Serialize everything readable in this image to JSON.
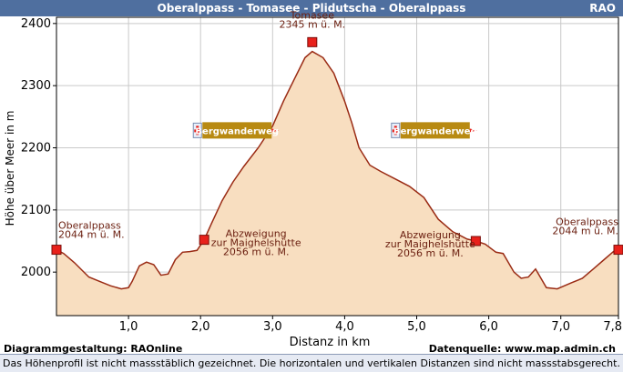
{
  "header": {
    "title": "Oberalppass -  Tomasee - Plidutscha - Oberalppass",
    "brand": "RAO"
  },
  "footer": {
    "design_credit": "Diagrammgestaltung: RAOnline",
    "source_credit": "Datenquelle: www.map.admin.ch",
    "note": "Das Höhenprofil ist nicht massstäblich gezeichnet. Die horizontalen und vertikalen Distanzen sind nicht massstabsgerecht."
  },
  "colors": {
    "header_bar": "#4f6f9f",
    "fill": "#f8dec0",
    "line": "#9a2b14",
    "marker": "#e8211b",
    "badge": "#b88a12"
  },
  "chart_data": {
    "type": "area",
    "xlabel": "Distanz in km",
    "ylabel": "Höhe über Meer in m",
    "xlim": [
      0,
      7.8
    ],
    "ylim": [
      1930,
      2410
    ],
    "y_ticks": [
      2000,
      2100,
      2200,
      2300,
      2400
    ],
    "x_ticks": [
      {
        "value": 1.0,
        "label": "1,0"
      },
      {
        "value": 2.0,
        "label": "2,0"
      },
      {
        "value": 3.0,
        "label": "3,0"
      },
      {
        "value": 4.0,
        "label": "4,0"
      },
      {
        "value": 5.0,
        "label": "5,0"
      },
      {
        "value": 6.0,
        "label": "6,0"
      },
      {
        "value": 7.0,
        "label": "7,0"
      },
      {
        "value": 7.8,
        "label": "7,8"
      }
    ],
    "grid": true,
    "x": [
      0,
      0.1,
      0.25,
      0.45,
      0.6,
      0.75,
      0.9,
      1.0,
      1.05,
      1.15,
      1.25,
      1.35,
      1.45,
      1.55,
      1.65,
      1.75,
      1.85,
      1.95,
      2.05,
      2.15,
      2.3,
      2.45,
      2.6,
      2.8,
      3.0,
      3.15,
      3.3,
      3.45,
      3.55,
      3.7,
      3.85,
      4.0,
      4.1,
      4.2,
      4.35,
      4.5,
      4.7,
      4.9,
      5.1,
      5.3,
      5.5,
      5.7,
      5.82,
      5.95,
      6.1,
      6.2,
      6.35,
      6.45,
      6.55,
      6.65,
      6.8,
      6.95,
      7.05,
      7.15,
      7.3,
      7.45,
      7.6,
      7.75,
      7.8
    ],
    "y": [
      2036,
      2030,
      2015,
      1992,
      1985,
      1978,
      1973,
      1975,
      1985,
      2010,
      2016,
      2012,
      1995,
      1997,
      2020,
      2032,
      2033,
      2035,
      2052,
      2078,
      2115,
      2145,
      2170,
      2200,
      2235,
      2275,
      2310,
      2345,
      2355,
      2345,
      2320,
      2275,
      2240,
      2200,
      2172,
      2162,
      2150,
      2138,
      2120,
      2085,
      2065,
      2053,
      2050,
      2045,
      2032,
      2030,
      2000,
      1990,
      1992,
      2005,
      1975,
      1973,
      1978,
      1983,
      1990,
      2005,
      2020,
      2035,
      2044
    ],
    "markers": [
      {
        "x": 0.0,
        "y": 2036,
        "name": "Oberalppass",
        "elevation": "2044 m ü. M."
      },
      {
        "x": 2.05,
        "y": 2052,
        "name": "Abzweigung\nzur Maighelshütte",
        "elevation": "2056 m ü. M."
      },
      {
        "x": 3.55,
        "y": 2370,
        "name": "Tomasee",
        "elevation": "2345 m ü. M."
      },
      {
        "x": 5.82,
        "y": 2050,
        "name": "Abzweigung\nzur Maighelshütte",
        "elevation": "2056 m ü. M."
      },
      {
        "x": 7.8,
        "y": 2036,
        "name": "Oberalppass",
        "elevation": "2044 m ü. M."
      }
    ],
    "badges": [
      {
        "x": 1.95,
        "y": 2228,
        "label": "Bergwanderweg"
      },
      {
        "x": 4.7,
        "y": 2228,
        "label": "Bergwanderweg"
      }
    ]
  }
}
